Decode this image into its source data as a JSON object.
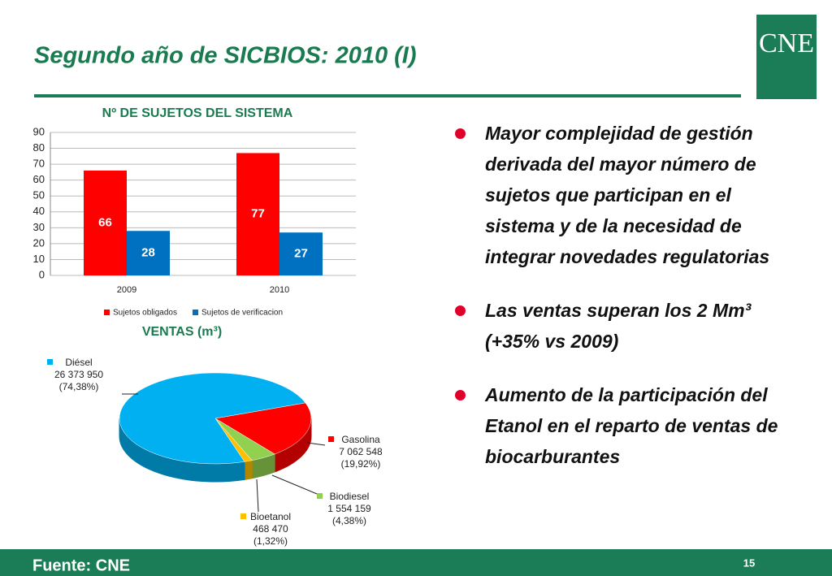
{
  "title": "Segundo año de SICBIOS: 2010 (I)",
  "logo": "CNE",
  "chart_data": [
    {
      "type": "bar",
      "title": "Nº DE SUJETOS DEL SISTEMA",
      "categories": [
        "2009",
        "2010"
      ],
      "series": [
        {
          "name": "Sujetos obligados",
          "color": "#ff0000",
          "values": [
            66,
            77
          ]
        },
        {
          "name": "Sujetos de verificacion",
          "color": "#0070c0",
          "values": [
            28,
            27
          ]
        }
      ],
      "ylim": [
        0,
        90
      ],
      "yticks": [
        0,
        10,
        20,
        30,
        40,
        50,
        60,
        70,
        80,
        90
      ],
      "grid": true,
      "legend": "bottom"
    },
    {
      "type": "pie",
      "title": "VENTAS  (m³)",
      "categories": [
        "Diésel",
        "Gasolina",
        "Biodiesel",
        "Bioetanol"
      ],
      "values": [
        26373950,
        7062548,
        1554159,
        468470
      ],
      "value_labels": [
        "26 373 950",
        "7 062 548",
        "1 554 159",
        "468 470"
      ],
      "shares": [
        74.38,
        19.92,
        4.38,
        1.32
      ],
      "share_labels": [
        "(74,38%)",
        "(19,92%)",
        "(4,38%)",
        "(1,32%)"
      ],
      "colors": [
        "#00b0f0",
        "#ff0000",
        "#92d050",
        "#ffc000"
      ]
    }
  ],
  "bullets": [
    "Mayor complejidad de gestión derivada del mayor número de sujetos que participan en el sistema y de la necesidad de integrar novedades regulatorias",
    "Las ventas superan los 2 Mm³ (+35% vs 2009)",
    "Aumento de la participación del Etanol en el reparto de ventas de biocarburantes"
  ],
  "footer": {
    "source": "Fuente: CNE",
    "page": "15"
  }
}
